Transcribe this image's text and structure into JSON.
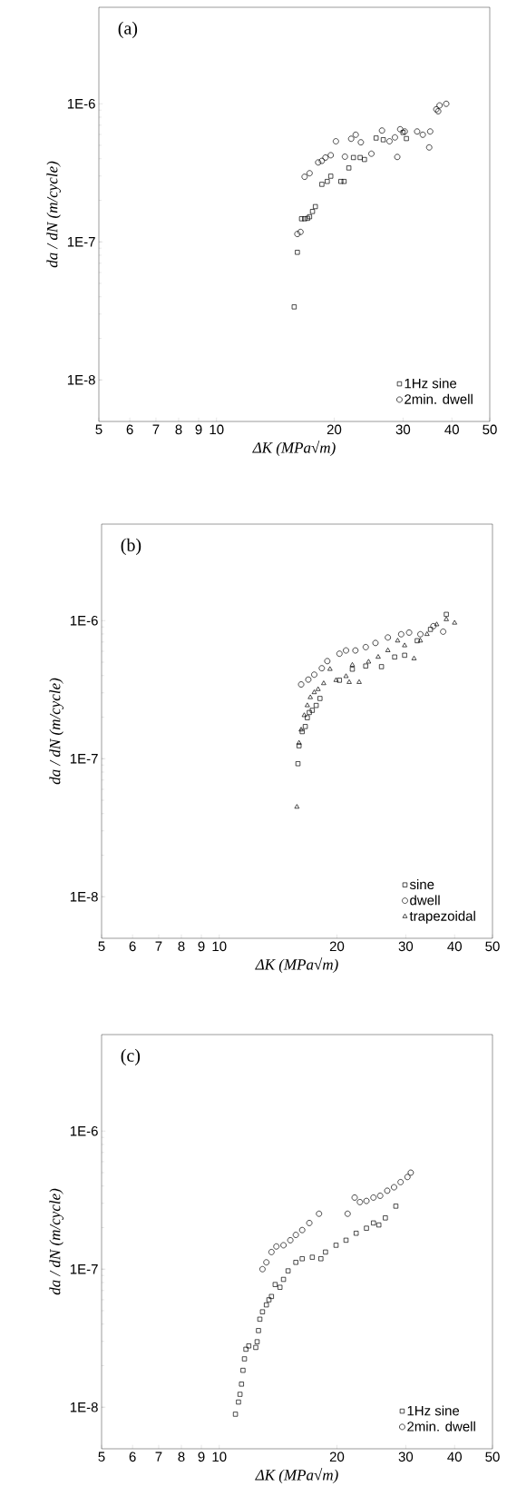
{
  "chart_data": [
    {
      "type": "scatter",
      "title": "(a)",
      "xlabel": "ΔK (MPa√m)",
      "ylabel": "da / dN (m/cycle)",
      "log": "xy",
      "xlim": [
        5,
        50
      ],
      "ylim": [
        5e-09,
        5e-06
      ],
      "xticks": [
        5,
        6,
        7,
        8,
        9,
        10,
        20,
        30,
        40,
        50
      ],
      "yticks": [
        {
          "value": 1e-08,
          "label": "1E-8"
        },
        {
          "value": 1e-07,
          "label": "1E-7"
        },
        {
          "value": 1e-06,
          "label": "1E-6"
        }
      ],
      "legend": "bottom right",
      "series": [
        {
          "name": "1Hz sine",
          "color": "#000000",
          "marker": "square",
          "x": [
            15.8,
            16.1,
            16.5,
            16.8,
            17.1,
            17.3,
            17.6,
            17.9,
            18.6,
            19.2,
            19.6,
            20.8,
            21.2,
            21.8,
            22.4,
            23.3,
            23.9,
            25.6,
            26.7,
            30.0,
            30.6
          ],
          "values": [
            3.38e-08,
            8.4e-08,
            1.47e-07,
            1.47e-07,
            1.48e-07,
            1.52e-07,
            1.66e-07,
            1.8e-07,
            2.61e-07,
            2.74e-07,
            2.99e-07,
            2.74e-07,
            2.74e-07,
            3.43e-07,
            4.08e-07,
            4.08e-07,
            3.95e-07,
            5.65e-07,
            5.49e-07,
            6.2e-07,
            5.6e-07
          ]
        },
        {
          "name": "2min. dwell",
          "color": "#000000",
          "marker": "circle",
          "x": [
            16.1,
            16.4,
            16.8,
            17.3,
            18.2,
            18.6,
            19.0,
            19.6,
            20.2,
            21.3,
            22.1,
            22.7,
            23.4,
            24.9,
            26.5,
            27.7,
            28.6,
            29.0,
            29.5,
            30.3,
            32.6,
            33.7,
            35.2,
            35.0,
            36.5,
            36.9,
            37.2,
            38.7
          ],
          "values": [
            1.14e-07,
            1.18e-07,
            2.96e-07,
            3.14e-07,
            3.76e-07,
            3.86e-07,
            4.08e-07,
            4.24e-07,
            5.35e-07,
            4.14e-07,
            5.58e-07,
            5.97e-07,
            5.26e-07,
            4.35e-07,
            6.4e-07,
            5.35e-07,
            5.71e-07,
            4.12e-07,
            6.54e-07,
            6.3e-07,
            6.3e-07,
            5.97e-07,
            6.3e-07,
            4.83e-07,
            9.12e-07,
            8.83e-07,
            9.73e-07,
            1e-06
          ]
        }
      ]
    },
    {
      "type": "scatter",
      "title": "(b)",
      "xlabel": "ΔK (MPa√m)",
      "ylabel": "da / dN (m/cycle)",
      "log": "xy",
      "xlim": [
        5,
        50
      ],
      "ylim": [
        5e-09,
        5e-06
      ],
      "xticks": [
        5,
        6,
        7,
        8,
        9,
        10,
        20,
        30,
        40,
        50
      ],
      "yticks": [
        {
          "value": 1e-08,
          "label": "1E-8"
        },
        {
          "value": 1e-07,
          "label": "1E-7"
        },
        {
          "value": 1e-06,
          "label": "1E-6"
        }
      ],
      "legend": "bottom right",
      "series": [
        {
          "name": "sine",
          "color": "#000000",
          "marker": "square",
          "x": [
            15.9,
            16.0,
            16.3,
            16.6,
            16.8,
            17.0,
            17.3,
            17.7,
            18.1,
            20.3,
            21.9,
            23.7,
            26.0,
            28.1,
            29.8,
            32.1,
            34.7,
            38.1
          ],
          "values": [
            9.2e-08,
            1.24e-07,
            1.57e-07,
            1.71e-07,
            1.98e-07,
            2.16e-07,
            2.24e-07,
            2.43e-07,
            2.73e-07,
            3.7e-07,
            4.45e-07,
            4.69e-07,
            4.64e-07,
            5.45e-07,
            5.61e-07,
            7.15e-07,
            8.64e-07,
            1.11e-06
          ]
        },
        {
          "name": "dwell",
          "color": "#000000",
          "marker": "circle",
          "x": [
            16.2,
            16.9,
            17.5,
            18.3,
            18.9,
            20.3,
            21.1,
            22.3,
            23.7,
            25.1,
            27.0,
            29.2,
            30.6,
            32.7,
            35.3,
            37.4
          ],
          "values": [
            3.45e-07,
            3.74e-07,
            4.06e-07,
            4.52e-07,
            5.09e-07,
            5.76e-07,
            6.08e-07,
            6.08e-07,
            6.43e-07,
            6.89e-07,
            7.55e-07,
            7.97e-07,
            8.19e-07,
            7.97e-07,
            9.12e-07,
            8.32e-07
          ]
        },
        {
          "name": "trapezoidal",
          "color": "#000000",
          "marker": "triangle",
          "x": [
            15.8,
            16.0,
            16.2,
            16.5,
            16.8,
            17.1,
            17.5,
            17.9,
            18.5,
            19.2,
            19.9,
            21.1,
            21.5,
            21.9,
            22.8,
            24.1,
            25.5,
            27.0,
            28.6,
            29.8,
            31.5,
            32.7,
            34.0,
            36.0,
            38.1,
            40.0
          ],
          "values": [
            4.47e-08,
            1.3e-07,
            1.62e-07,
            2.06e-07,
            2.43e-07,
            2.78e-07,
            3.02e-07,
            3.18e-07,
            3.51e-07,
            4.45e-07,
            3.7e-07,
            3.95e-07,
            3.58e-07,
            4.77e-07,
            3.58e-07,
            5.03e-07,
            5.45e-07,
            6.08e-07,
            7.15e-07,
            6.6e-07,
            5.31e-07,
            7.15e-07,
            7.97e-07,
            9.37e-07,
            1.02e-06,
            9.63e-07
          ]
        }
      ]
    },
    {
      "type": "scatter",
      "title": "(c)",
      "xlabel": "ΔK (MPa√m)",
      "ylabel": "da / dN (m/cycle)",
      "log": "xy",
      "xlim": [
        5,
        50
      ],
      "ylim": [
        5e-09,
        5e-06
      ],
      "xticks": [
        5,
        6,
        7,
        8,
        9,
        10,
        20,
        30,
        40,
        50
      ],
      "yticks": [
        {
          "value": 1e-08,
          "label": "1E-8"
        },
        {
          "value": 1e-07,
          "label": "1E-7"
        },
        {
          "value": 1e-06,
          "label": "1E-6"
        }
      ],
      "legend": "bottom right",
      "series": [
        {
          "name": "1Hz sine",
          "color": "#000000",
          "marker": "square",
          "x": [
            11.0,
            11.2,
            11.3,
            11.4,
            11.5,
            11.6,
            11.7,
            11.9,
            12.4,
            12.5,
            12.6,
            12.7,
            12.9,
            13.2,
            13.4,
            13.6,
            13.9,
            14.3,
            14.6,
            15.0,
            15.7,
            16.3,
            17.3,
            18.2,
            18.7,
            19.9,
            21.1,
            22.4,
            23.8,
            24.8,
            25.6,
            26.6,
            28.3
          ],
          "values": [
            8.9e-09,
            1.09e-08,
            1.24e-08,
            1.47e-08,
            1.85e-08,
            2.24e-08,
            2.63e-08,
            2.78e-08,
            2.71e-08,
            2.98e-08,
            3.59e-08,
            4.34e-08,
            4.91e-08,
            5.51e-08,
            6e-08,
            6.34e-08,
            7.74e-08,
            7.39e-08,
            8.43e-08,
            9.72e-08,
            1.12e-07,
            1.19e-07,
            1.22e-07,
            1.19e-07,
            1.33e-07,
            1.49e-07,
            1.62e-07,
            1.82e-07,
            1.98e-07,
            2.16e-07,
            2.09e-07,
            2.35e-07,
            2.86e-07
          ]
        },
        {
          "name": "2min. dwell",
          "color": "#000000",
          "marker": "circle",
          "x": [
            12.9,
            13.2,
            13.6,
            14.0,
            14.6,
            15.2,
            15.7,
            16.3,
            17.0,
            18.0,
            21.3,
            22.2,
            22.9,
            23.8,
            24.8,
            25.8,
            26.9,
            28.0,
            29.1,
            30.3,
            30.9
          ],
          "values": [
            1e-07,
            1.12e-07,
            1.33e-07,
            1.46e-07,
            1.49e-07,
            1.62e-07,
            1.77e-07,
            1.92e-07,
            2.16e-07,
            2.52e-07,
            2.52e-07,
            3.3e-07,
            3.06e-07,
            3.12e-07,
            3.3e-07,
            3.4e-07,
            3.7e-07,
            3.92e-07,
            4.27e-07,
            4.65e-07,
            5e-07
          ]
        }
      ]
    }
  ]
}
